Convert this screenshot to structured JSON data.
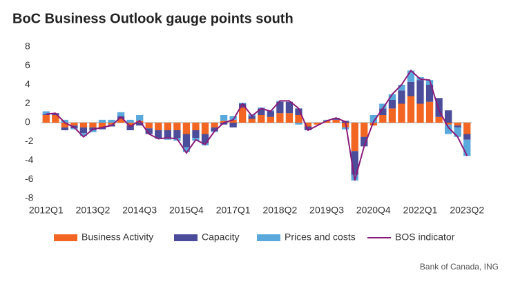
{
  "chart_data": {
    "type": "bar",
    "title": "BoC Business Outlook gauge points south",
    "source": "Bank of Canada, ING",
    "categories": [
      "2012Q1",
      null,
      null,
      null,
      null,
      "2013Q2",
      null,
      null,
      null,
      null,
      "2014Q3",
      null,
      null,
      null,
      null,
      "2015Q4",
      null,
      null,
      null,
      null,
      "2017Q1",
      null,
      null,
      null,
      null,
      "2018Q2",
      null,
      null,
      null,
      null,
      "2019Q3",
      null,
      null,
      null,
      null,
      "2020Q4",
      null,
      null,
      null,
      null,
      "2022Q1",
      null,
      null,
      null,
      null,
      "2023Q2"
    ],
    "series": [
      {
        "name": "Business Activity",
        "type": "bar",
        "color": "#f26522",
        "values": [
          0.8,
          0.8,
          -0.5,
          -0.3,
          -0.5,
          -0.5,
          -0.5,
          -0.2,
          0.4,
          -0.3,
          0.2,
          -0.6,
          -0.8,
          -0.8,
          -0.8,
          -1.2,
          -0.8,
          -1.2,
          -0.5,
          0.2,
          0.3,
          1.6,
          0.4,
          0.8,
          0.6,
          1.0,
          1.0,
          0.8,
          -0.4,
          -0.2,
          0.2,
          0.3,
          -0.5,
          -3.0,
          -1.5,
          -0.3,
          0.8,
          1.5,
          2.0,
          2.8,
          2.0,
          2.2,
          0.6,
          -0.2,
          -0.3,
          -1.2
        ]
      },
      {
        "name": "Capacity",
        "type": "bar",
        "color": "#4b4c9a",
        "values": [
          0.1,
          0.2,
          -0.3,
          -0.3,
          -0.6,
          -0.3,
          -0.2,
          -0.2,
          0.3,
          -0.5,
          -0.3,
          -0.6,
          -0.8,
          -0.8,
          -0.8,
          -1.4,
          -0.8,
          -1.0,
          -0.4,
          -0.2,
          -0.5,
          0.4,
          0.3,
          0.7,
          0.6,
          1.2,
          1.2,
          0.7,
          -0.4,
          0.0,
          0.0,
          0.2,
          0.2,
          -2.5,
          -1.0,
          0.0,
          0.7,
          0.9,
          1.4,
          1.5,
          2.5,
          1.8,
          2.0,
          1.3,
          -0.2,
          -0.6
        ]
      },
      {
        "name": "Prices and costs",
        "type": "bar",
        "color": "#5aa9dc",
        "values": [
          0.3,
          0.0,
          0.3,
          -0.1,
          -0.3,
          -0.2,
          0.3,
          0.3,
          0.4,
          0.3,
          0.6,
          0.0,
          -0.1,
          -0.2,
          -0.3,
          -0.5,
          -0.3,
          -0.2,
          -0.1,
          0.6,
          0.4,
          0.1,
          0.2,
          0.1,
          0.1,
          0.1,
          0.0,
          -0.2,
          0.0,
          0.0,
          0.1,
          0.0,
          -0.2,
          -0.6,
          0.0,
          0.8,
          0.5,
          0.6,
          0.6,
          1.2,
          0.3,
          0.5,
          0.0,
          -1.0,
          -1.0,
          -1.7
        ]
      },
      {
        "name": "BOS indicator",
        "type": "line",
        "color": "#8b1a7a",
        "values": [
          0.9,
          1.0,
          0.0,
          -0.5,
          -1.5,
          -0.7,
          -0.5,
          -0.3,
          0.6,
          -0.4,
          0.2,
          -1.2,
          -1.7,
          -1.6,
          -1.7,
          -3.2,
          -1.8,
          -2.3,
          -0.9,
          0.0,
          0.3,
          2.0,
          0.7,
          1.5,
          1.2,
          2.3,
          2.3,
          1.5,
          -0.8,
          -0.3,
          0.2,
          0.5,
          0.1,
          -6.1,
          -2.5,
          0.1,
          1.5,
          3.0,
          4.0,
          5.5,
          4.6,
          4.5,
          1.3,
          -0.5,
          -1.5,
          -3.5
        ]
      }
    ],
    "ylim": [
      -8,
      8
    ],
    "yticks": [
      -8,
      -6,
      -4,
      -2,
      0,
      2,
      4,
      6,
      8
    ],
    "grid": false,
    "legend": "bottom"
  }
}
